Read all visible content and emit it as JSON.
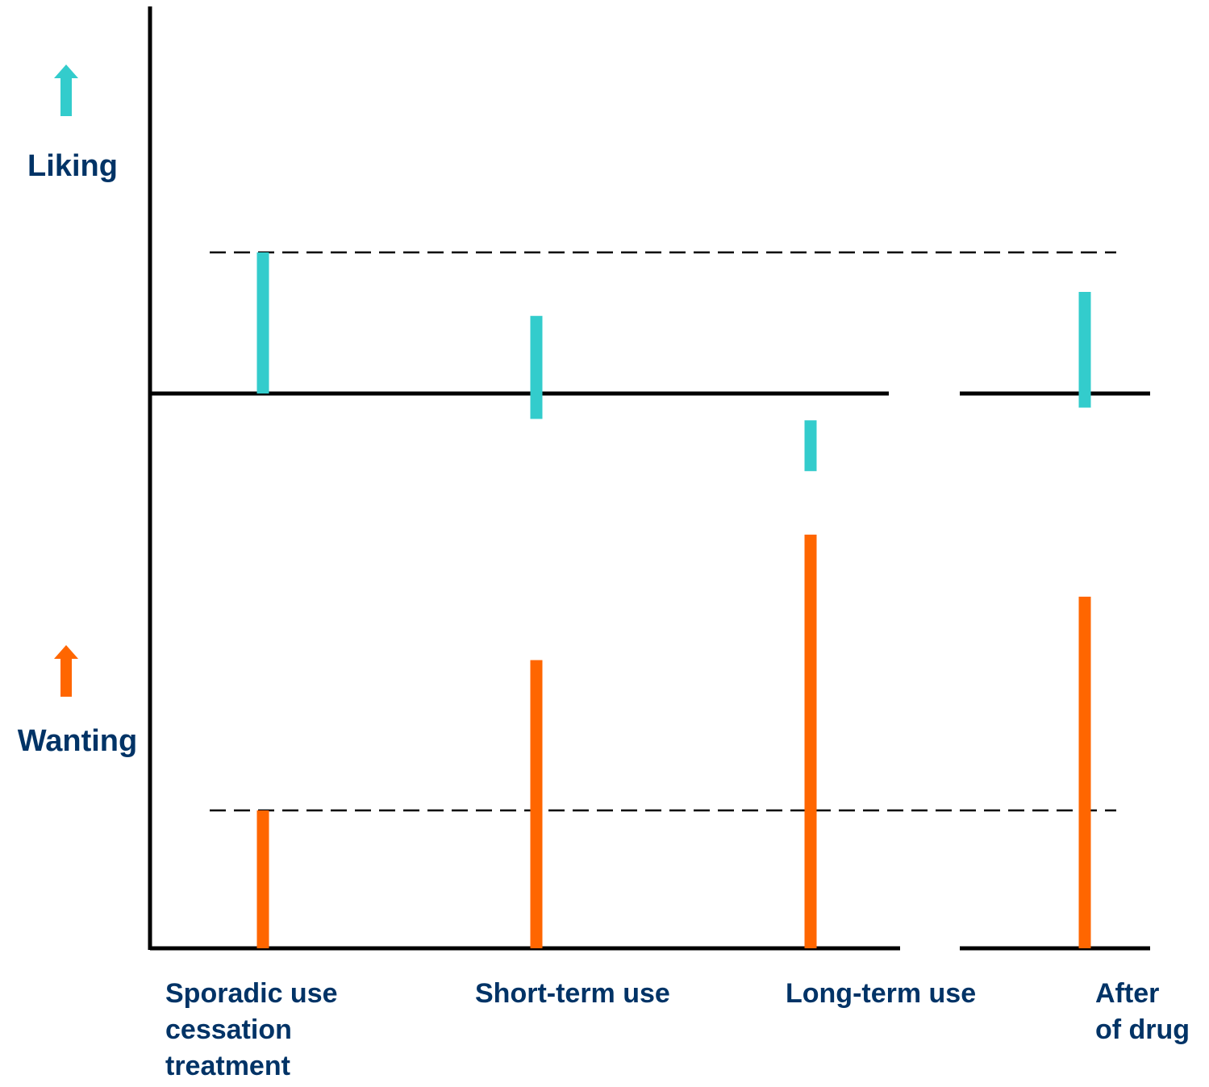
{
  "chart_data": {
    "type": "bar",
    "categories": [
      [
        "Sporadic use",
        "cessation",
        "treatment"
      ],
      [
        "Short-term use"
      ],
      [
        "Long-term use"
      ],
      [
        "After",
        "of drug"
      ]
    ],
    "series": [
      {
        "name": "Liking",
        "values": [
          1.0,
          0.73,
          0.36,
          0.82
        ],
        "baseline_offsets": [
          0,
          -0.18,
          -0.55,
          -0.1
        ],
        "color": "#33CCCC"
      },
      {
        "name": "Wanting",
        "values": [
          1.0,
          2.09,
          3.0,
          2.55
        ],
        "color": "#FF6600"
      }
    ],
    "reference_lines": {
      "liking": 1.0,
      "wanting": 1.0
    },
    "ylim_liking": [
      -1.0,
      2.0
    ],
    "ylim_wanting": [
      0,
      3.0
    ],
    "axis_color": "#000000",
    "label_color": "#003366",
    "grid": false
  }
}
